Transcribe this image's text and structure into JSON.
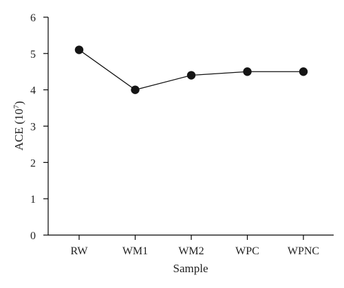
{
  "chart_data": {
    "type": "line",
    "categories": [
      "RW",
      "WM1",
      "WM2",
      "WPC",
      "WPNC"
    ],
    "series": [
      {
        "values": [
          5.1,
          4.0,
          4.4,
          4.5,
          4.5
        ]
      }
    ],
    "xlabel": "Sample",
    "ylabel": {
      "base": "ACE (10",
      "exponent": "7",
      "close": ")"
    },
    "ylim": [
      0,
      6
    ],
    "yticks": [
      0,
      1,
      2,
      3,
      4,
      5,
      6
    ],
    "grid": false,
    "legend": "none",
    "colors": {
      "line": "#111111",
      "marker": "#151515",
      "axis": "#000000",
      "text": "#222222"
    }
  }
}
